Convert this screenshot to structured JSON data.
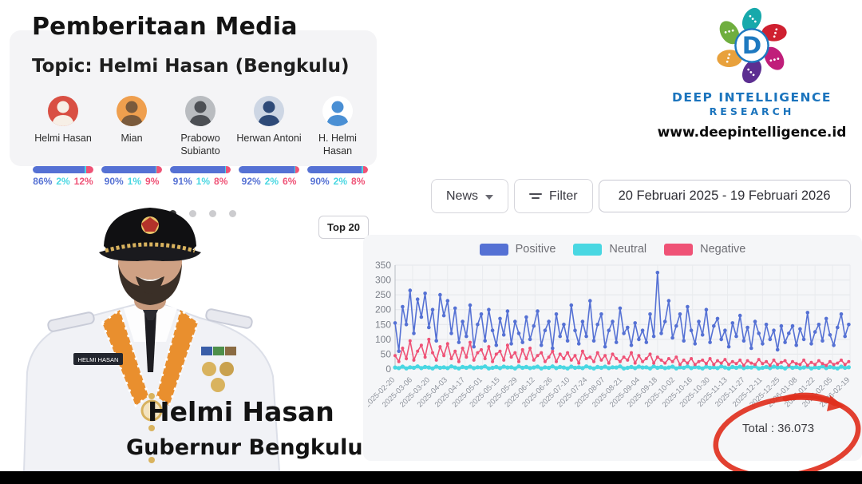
{
  "header": {
    "title": "Pemberitaan Media",
    "subtitle": "Topic: Helmi Hasan (Bengkulu)"
  },
  "brand": {
    "name": "DEEP INTELLIGENCE",
    "sub": "RESEARCH",
    "website": "www.deepintelligence.id",
    "d_letter": "D",
    "d_color": "#1e79c0",
    "petal_colors": [
      "#17a9ab",
      "#cf2030",
      "#c01e7a",
      "#5c2e91",
      "#e8a13c",
      "#6fae3e"
    ]
  },
  "people": [
    {
      "name": "Helmi Hasan",
      "positive": "86%",
      "neutral": "2%",
      "negative": "12%",
      "pos_val": 86,
      "neu_val": 2,
      "neg_val": 12,
      "avatar_bg": "#d94f43",
      "avatar_fg": "#f7efe6"
    },
    {
      "name": "Mian",
      "positive": "90%",
      "neutral": "1%",
      "negative": "9%",
      "pos_val": 90,
      "neu_val": 1,
      "neg_val": 9,
      "avatar_bg": "#ef9f4e",
      "avatar_fg": "#7a5a3c"
    },
    {
      "name": "Prabowo Subianto",
      "positive": "91%",
      "neutral": "1%",
      "negative": "8%",
      "pos_val": 91,
      "neu_val": 1,
      "neg_val": 8,
      "avatar_bg": "#b9bcc0",
      "avatar_fg": "#4c4f54"
    },
    {
      "name": "Herwan Antoni",
      "positive": "92%",
      "neutral": "2%",
      "negative": "6%",
      "pos_val": 92,
      "neu_val": 2,
      "neg_val": 6,
      "avatar_bg": "#cdd6e4",
      "avatar_fg": "#2e4a78"
    },
    {
      "name": "H. Helmi Hasan",
      "positive": "90%",
      "neutral": "2%",
      "negative": "8%",
      "pos_val": 90,
      "neu_val": 2,
      "neg_val": 8,
      "avatar_bg": "#ffffff",
      "avatar_fg": "#4a8fd4"
    }
  ],
  "pagination": {
    "dot_count": 4,
    "active_index": 0,
    "active_color": "#3a3a3a",
    "inactive_color": "#cccccf"
  },
  "top_button_label": "Top 20",
  "toolbar": {
    "news_label": "News",
    "filter_label": "Filter",
    "date_range": "20 Februari 2025 - 19 Februari 2026"
  },
  "legend": [
    {
      "label": "Positive",
      "color": "#5571d4"
    },
    {
      "label": "Neutral",
      "color": "#49d7e2"
    },
    {
      "label": "Negative",
      "color": "#ef5276"
    }
  ],
  "total_label": "Total : 36.073",
  "portrait": {
    "name": "Helmi Hasan",
    "title": "Gubernur Bengkulu",
    "nametag": "HELMI HASAN"
  },
  "chart_data": {
    "type": "line",
    "title": "",
    "xlabel": "",
    "ylabel": "",
    "ylim": [
      0,
      350
    ],
    "yticks": [
      0,
      50,
      100,
      150,
      200,
      250,
      300,
      350
    ],
    "grid": true,
    "legend_position": "top",
    "x_days_total": 365,
    "sample_interval_days": 3,
    "x_tick_labels": [
      "2025-02-20",
      "2025-03-06",
      "2025-03-20",
      "2025-04-03",
      "2025-04-17",
      "2025-05-01",
      "2025-05-15",
      "2025-05-29",
      "2025-06-12",
      "2025-06-26",
      "2025-07-10",
      "2025-07-24",
      "2025-08-07",
      "2025-08-21",
      "2025-09-04",
      "2025-09-18",
      "2025-10-02",
      "2025-10-16",
      "2025-10-30",
      "2025-11-13",
      "2025-11-27",
      "2025-12-11",
      "2025-12-25",
      "2026-01-08",
      "2026-01-22",
      "2026-02-05",
      "2026-02-19"
    ],
    "series": [
      {
        "name": "Positive",
        "color": "#5571d4",
        "values": [
          155,
          60,
          210,
          150,
          265,
          120,
          235,
          175,
          255,
          140,
          200,
          95,
          250,
          180,
          230,
          120,
          205,
          90,
          160,
          110,
          215,
          75,
          150,
          185,
          95,
          200,
          130,
          80,
          170,
          115,
          195,
          85,
          160,
          120,
          90,
          175,
          100,
          145,
          195,
          80,
          130,
          160,
          70,
          185,
          110,
          150,
          95,
          215,
          130,
          85,
          160,
          110,
          230,
          95,
          150,
          185,
          75,
          130,
          160,
          90,
          205,
          120,
          140,
          80,
          155,
          100,
          130,
          90,
          185,
          110,
          325,
          120,
          160,
          230,
          105,
          145,
          185,
          95,
          210,
          130,
          85,
          160,
          115,
          200,
          90,
          145,
          170,
          100,
          130,
          75,
          155,
          110,
          180,
          95,
          140,
          70,
          160,
          120,
          85,
          150,
          100,
          130,
          65,
          145,
          90,
          120,
          145,
          80,
          135,
          100,
          190,
          85,
          125,
          150,
          95,
          170,
          115,
          80,
          140,
          185,
          110,
          150
        ]
      },
      {
        "name": "Neutral",
        "color": "#49d7e2",
        "values": [
          5,
          3,
          8,
          2,
          6,
          4,
          9,
          3,
          7,
          5,
          2,
          8,
          4,
          6,
          3,
          9,
          5,
          2,
          7,
          4,
          8,
          3,
          6,
          5,
          9,
          2,
          4,
          7,
          3,
          8,
          5,
          6,
          2,
          9,
          4,
          7,
          3,
          5,
          8,
          2,
          6,
          4,
          9,
          3,
          7,
          5,
          2,
          8,
          4,
          6,
          3,
          9,
          5,
          2,
          7,
          4,
          8,
          3,
          6,
          5,
          9,
          2,
          4,
          7,
          3,
          8,
          5,
          6,
          2,
          9,
          4,
          7,
          3,
          5,
          8,
          2,
          6,
          4,
          9,
          3,
          7,
          5,
          2,
          8,
          4,
          6,
          3,
          9,
          5,
          2,
          7,
          4,
          8,
          3,
          6,
          5,
          9,
          2,
          4,
          7,
          3,
          8,
          5,
          6,
          2,
          9,
          4,
          7,
          3,
          5,
          8,
          2,
          6,
          4,
          9,
          3,
          7,
          5,
          2,
          8,
          4,
          6
        ]
      },
      {
        "name": "Negative",
        "color": "#ef5276",
        "values": [
          45,
          25,
          70,
          35,
          95,
          30,
          60,
          80,
          40,
          100,
          55,
          30,
          75,
          45,
          85,
          35,
          60,
          25,
          70,
          40,
          90,
          30,
          55,
          65,
          35,
          75,
          25,
          50,
          60,
          30,
          80,
          40,
          55,
          25,
          65,
          35,
          70,
          30,
          45,
          55,
          25,
          40,
          60,
          25,
          50,
          35,
          55,
          30,
          45,
          20,
          60,
          35,
          40,
          25,
          55,
          30,
          45,
          20,
          50,
          35,
          25,
          40,
          30,
          55,
          20,
          45,
          25,
          35,
          50,
          20,
          40,
          30,
          20,
          35,
          25,
          40,
          15,
          30,
          20,
          35,
          15,
          25,
          30,
          18,
          35,
          15,
          28,
          20,
          32,
          15,
          25,
          18,
          30,
          12,
          28,
          20,
          15,
          32,
          18,
          25,
          12,
          30,
          15,
          22,
          28,
          12,
          25,
          18,
          15,
          30,
          12,
          22,
          15,
          28,
          18,
          12,
          25,
          15,
          20,
          30,
          15,
          25
        ]
      }
    ]
  }
}
